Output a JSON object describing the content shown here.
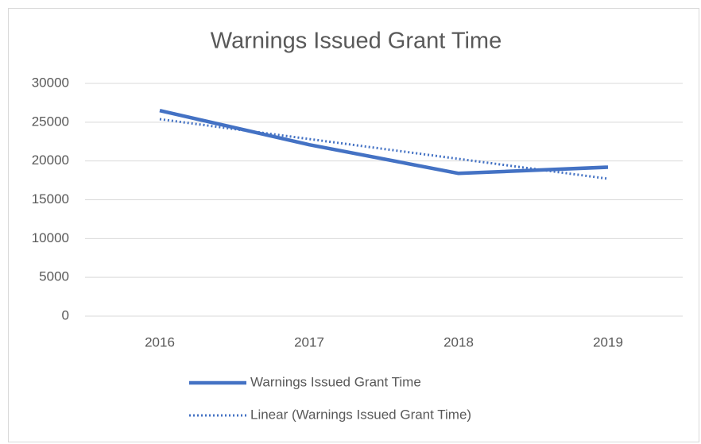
{
  "chart_data": {
    "type": "line",
    "title": "Warnings Issued Grant Time",
    "categories": [
      "2016",
      "2017",
      "2018",
      "2019"
    ],
    "series": [
      {
        "name": "Warnings Issued Grant Time",
        "color": "#4472c4",
        "values": [
          26500,
          22100,
          18400,
          19200
        ],
        "dash": "solid"
      },
      {
        "name": "Linear (Warnings Issued Grant Time)",
        "color": "#4472c4",
        "values": [
          25390,
          22830,
          20270,
          17710
        ],
        "dash": "dotted"
      }
    ],
    "ylim": [
      0,
      30000
    ],
    "yticks": [
      0,
      5000,
      10000,
      15000,
      20000,
      25000,
      30000
    ],
    "grid": true,
    "legend": "bottom"
  }
}
